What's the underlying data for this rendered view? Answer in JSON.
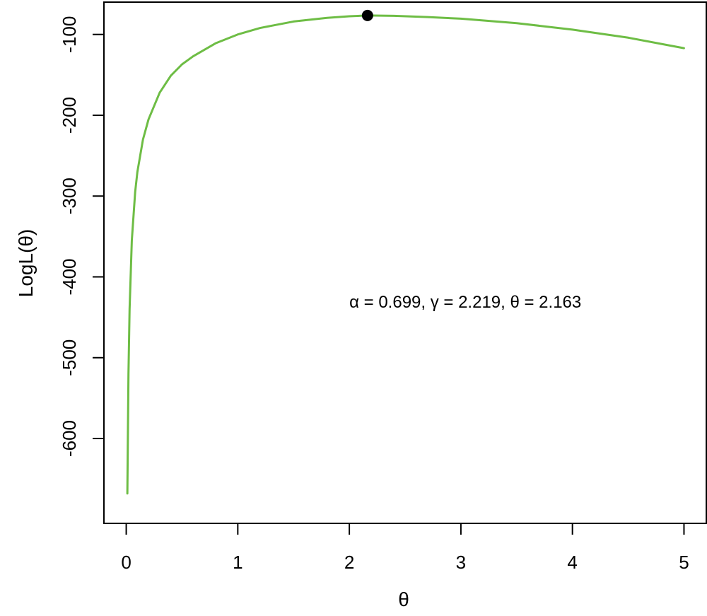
{
  "chart_data": {
    "type": "line",
    "title": "",
    "xlabel": "θ",
    "ylabel": "LogL(θ)",
    "xlim": [
      -0.2,
      5.2
    ],
    "ylim": [
      -705,
      -60
    ],
    "x_ticks": [
      0,
      1,
      2,
      3,
      4,
      5
    ],
    "y_ticks": [
      -600,
      -500,
      -400,
      -300,
      -200,
      -100
    ],
    "grid": false,
    "legend": "none",
    "series": [
      {
        "color": "#6ebd45",
        "x": [
          0.01,
          0.02,
          0.03,
          0.05,
          0.08,
          0.1,
          0.15,
          0.2,
          0.3,
          0.4,
          0.5,
          0.6,
          0.8,
          1.0,
          1.2,
          1.5,
          1.8,
          2.0,
          2.163,
          2.4,
          2.7,
          3.0,
          3.5,
          4.0,
          4.5,
          5.0
        ],
        "y": [
          -668,
          -520,
          -440,
          -355,
          -295,
          -270,
          -230,
          -205,
          -172,
          -151,
          -137,
          -127,
          -111,
          -100,
          -92,
          -84,
          -79.5,
          -77.5,
          -76.5,
          -77,
          -78.5,
          -80.5,
          -86,
          -94,
          -104,
          -117
        ]
      }
    ],
    "points": [
      {
        "x": 2.163,
        "y": -76.5,
        "color": "#000000"
      }
    ],
    "annotation": {
      "text": "α = 0.699,  γ = 2.219,  θ = 2.163",
      "x": 2.0,
      "y": -438
    }
  }
}
